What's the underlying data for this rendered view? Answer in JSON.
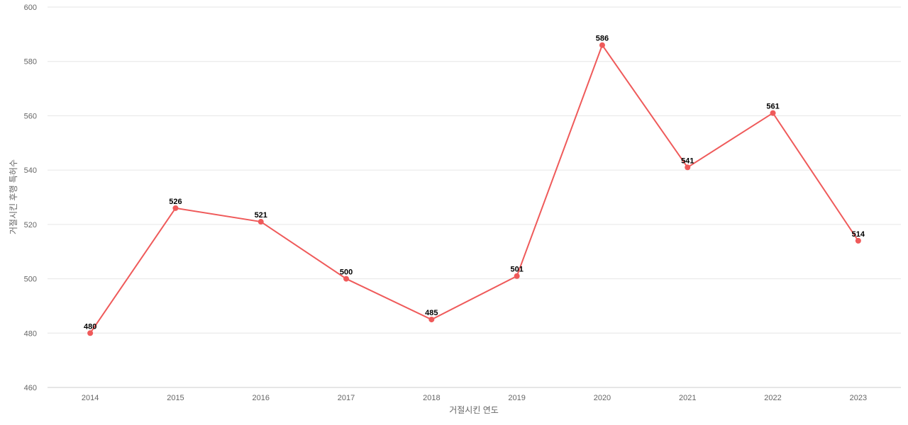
{
  "chart_data": {
    "type": "line",
    "categories": [
      "2014",
      "2015",
      "2016",
      "2017",
      "2018",
      "2019",
      "2020",
      "2021",
      "2022",
      "2023"
    ],
    "series": [
      {
        "values": [
          480,
          526,
          521,
          500,
          485,
          501,
          586,
          541,
          561,
          514
        ],
        "color": "#ef5a5a"
      }
    ],
    "xlabel": "거절시킨 연도",
    "ylabel": "거절시킨 후행 특허수",
    "ylim": [
      460,
      600
    ],
    "yticks": [
      460,
      480,
      500,
      520,
      540,
      560,
      580,
      600
    ],
    "grid": true,
    "data_labels": true
  }
}
